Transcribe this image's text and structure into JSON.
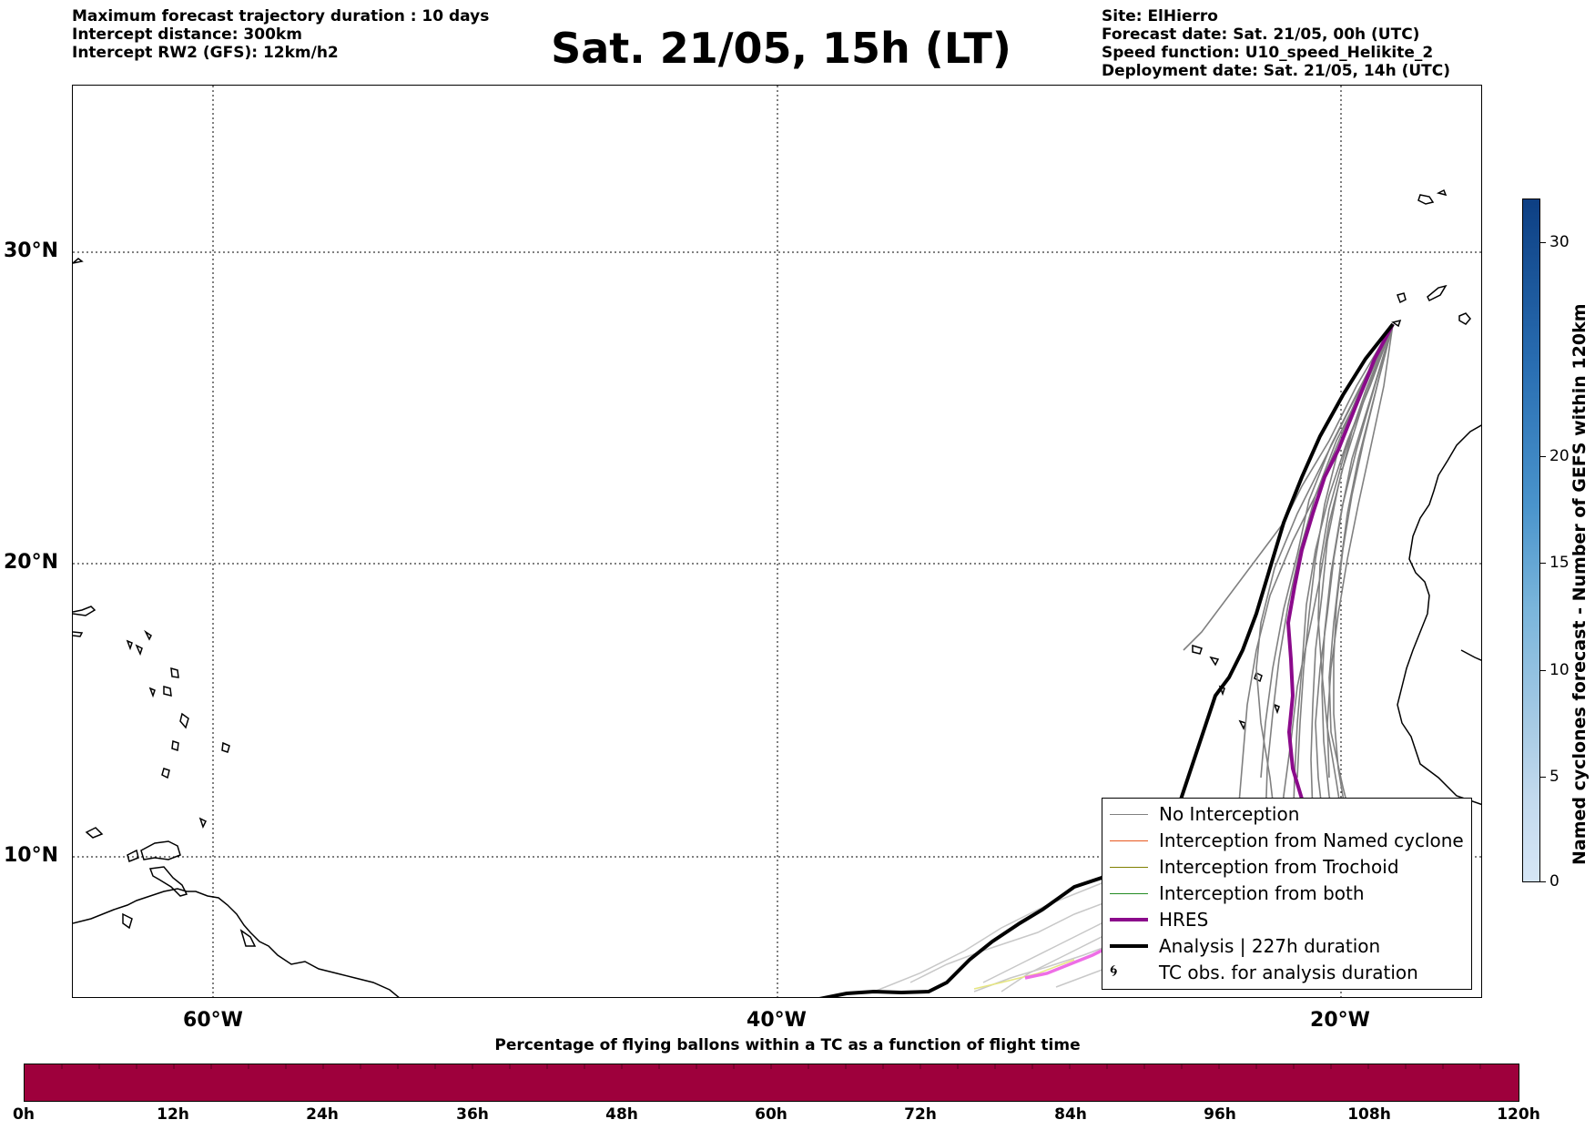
{
  "header_left": [
    "Maximum forecast trajectory duration : 10 days",
    "Intercept distance: 300km",
    "Intercept RW2 (GFS):  12km/h2"
  ],
  "title": "Sat. 21/05, 15h (LT)",
  "header_right": [
    "Site: ElHierro",
    "Forecast date: Sat. 21/05, 00h (UTC)",
    "Speed function: U10_speed_Helikite_2",
    "Deployment date: Sat. 21/05, 14h (UTC)"
  ],
  "map": {
    "lat_labels": [
      "30°N",
      "20°N",
      "10°N"
    ],
    "lon_labels": [
      "60°W",
      "40°W",
      "20°W"
    ],
    "gridlines": "dotted"
  },
  "legend": [
    {
      "label": "No Interception",
      "color": "#808080"
    },
    {
      "label": "Interception from Named cyclone",
      "color": "#e8581f"
    },
    {
      "label": "Interception from Trochoid",
      "color": "#808000"
    },
    {
      "label": "Interception from both",
      "color": "#228b22"
    },
    {
      "label": "HRES",
      "color": "#8b0a8b"
    },
    {
      "label": "Analysis | 227h duration",
      "color": "#000000"
    },
    {
      "label": "TC obs. for analysis duration",
      "color": "#000000",
      "symbol": "cyclone-icon"
    }
  ],
  "colorbar": {
    "title": "Named cyclones forecast - Number of GEFS within 120km",
    "ticks": [
      "0",
      "5",
      "10",
      "15",
      "20",
      "30"
    ],
    "colors": [
      "#d6e6f6",
      "#0d3f83"
    ]
  },
  "time_bar": {
    "title": "Percentage of flying ballons within a TC as a function of flight time",
    "ticks": [
      "0h",
      "12h",
      "24h",
      "36h",
      "48h",
      "60h",
      "72h",
      "84h",
      "96h",
      "108h",
      "120h"
    ],
    "color": "#9e003c"
  }
}
